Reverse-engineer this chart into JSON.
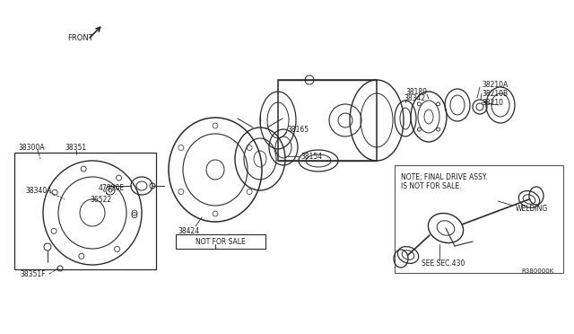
{
  "bg_color": "#ffffff",
  "fig_width": 6.4,
  "fig_height": 3.72,
  "dpi": 100,
  "lc": "#2a2a2a",
  "tc": "#1a1a1a",
  "labels": {
    "front": "FRONT",
    "38189": "38189",
    "38210A": "38210A",
    "38210B": "38210B",
    "38210": "38210",
    "38342": "38342",
    "38165": "38165",
    "38154": "38154",
    "38424": "38424",
    "not_for_sale": "NOT FOR SALE",
    "38300A": "38300A",
    "38351_top": "38351",
    "38340A": "38340A",
    "47990E": "47990E",
    "36522": "36522",
    "38351F": "38351F",
    "note1": "NOTE; FINAL DRIVE ASSY.",
    "note2": "IS NOT FOR SALE.",
    "welding": "WELDING",
    "see_sec": "SEE SEC.430",
    "ref": "R380000K"
  }
}
